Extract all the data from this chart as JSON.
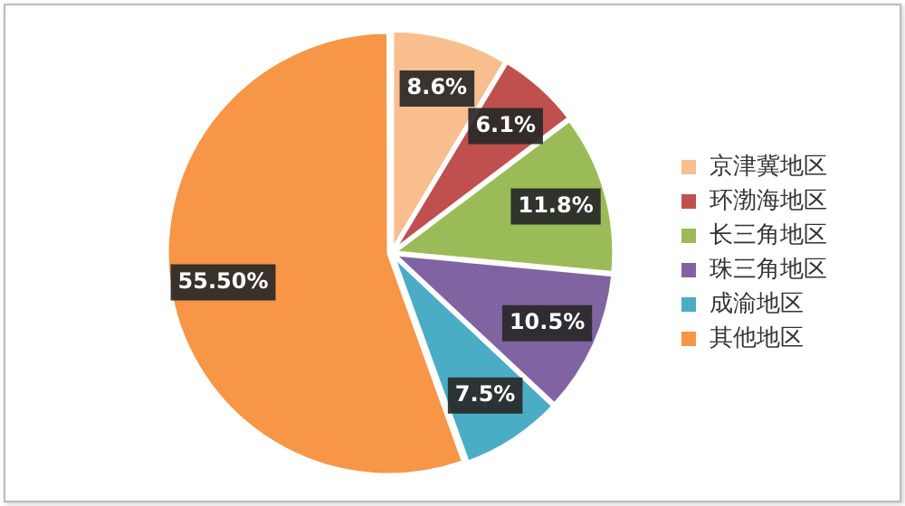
{
  "chart_data": {
    "type": "pie",
    "categories": [
      "京津冀地区",
      "环渤海地区",
      "长三角地区",
      "珠三角地区",
      "成渝地区",
      "其他地区"
    ],
    "values": [
      8.6,
      6.1,
      11.8,
      10.5,
      7.5,
      55.5
    ],
    "value_labels": [
      "8.6%",
      "6.1%",
      "11.8%",
      "10.5%",
      "7.5%",
      "55.50%"
    ],
    "colors": [
      "#f9be8e",
      "#c0504d",
      "#9bbb59",
      "#8064a2",
      "#4bacc6",
      "#f79646"
    ],
    "legend": "right"
  }
}
